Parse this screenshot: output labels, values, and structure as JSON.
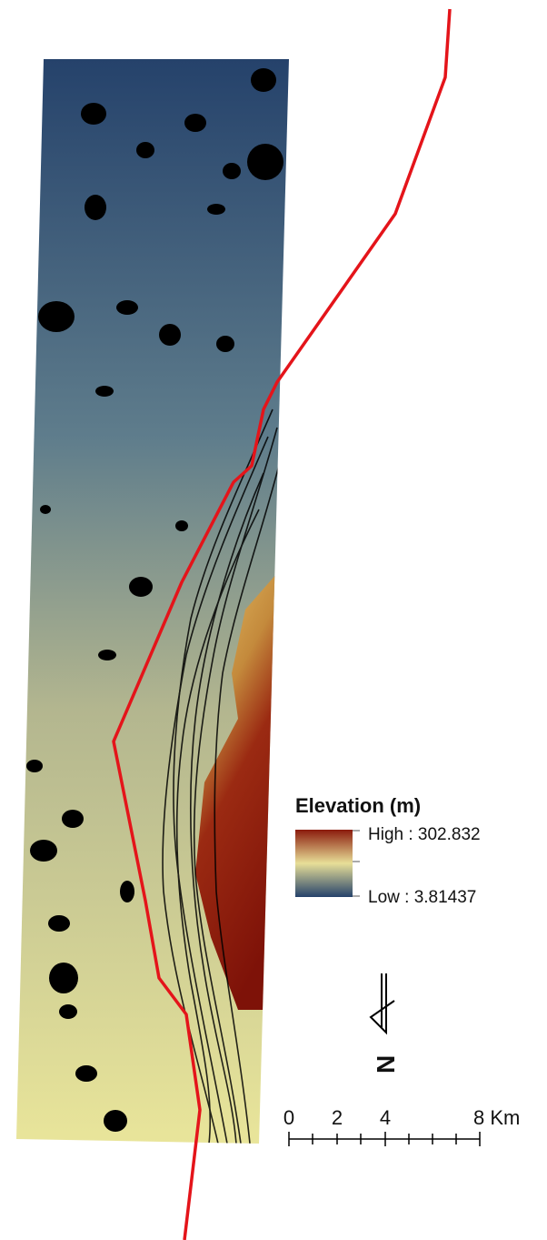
{
  "legend": {
    "title": "Elevation (m)",
    "high_label": "High : 302.832",
    "low_label": "Low : 3.81437"
  },
  "north_arrow": {
    "label": "N"
  },
  "scale_bar": {
    "labels": [
      "0",
      "2",
      "4",
      "8 Km"
    ]
  }
}
